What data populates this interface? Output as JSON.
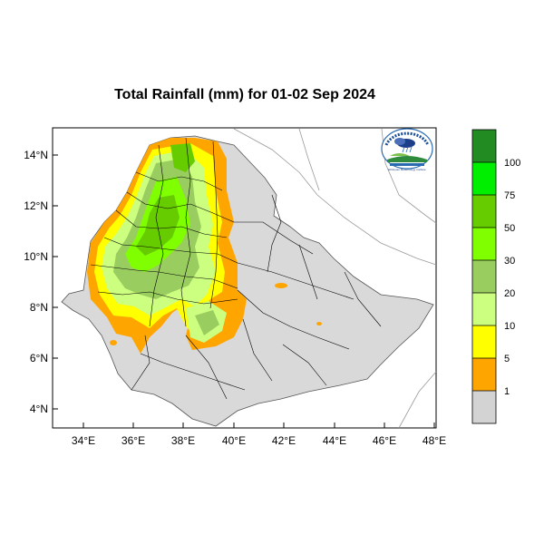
{
  "title": "Total Rainfall (mm) for 01-02 Sep 2024",
  "axes": {
    "y_ticks": [
      "14°N",
      "12°N",
      "10°N",
      "8°N",
      "6°N",
      "4°N"
    ],
    "x_ticks": [
      "34°E",
      "36°E",
      "38°E",
      "40°E",
      "42°E",
      "44°E",
      "46°E",
      "48°E"
    ]
  },
  "colorbar": {
    "labels": [
      "100",
      "75",
      "50",
      "30",
      "20",
      "10",
      "5",
      "1"
    ],
    "colors": [
      "#228B22",
      "#00ee00",
      "#66cc00",
      "#7fff00",
      "#9acd60",
      "#ccff80",
      "#ffff00",
      "#ffa500",
      "#d3d3d3"
    ]
  },
  "logo_text": "Ethiopian Meteorology Institute"
}
